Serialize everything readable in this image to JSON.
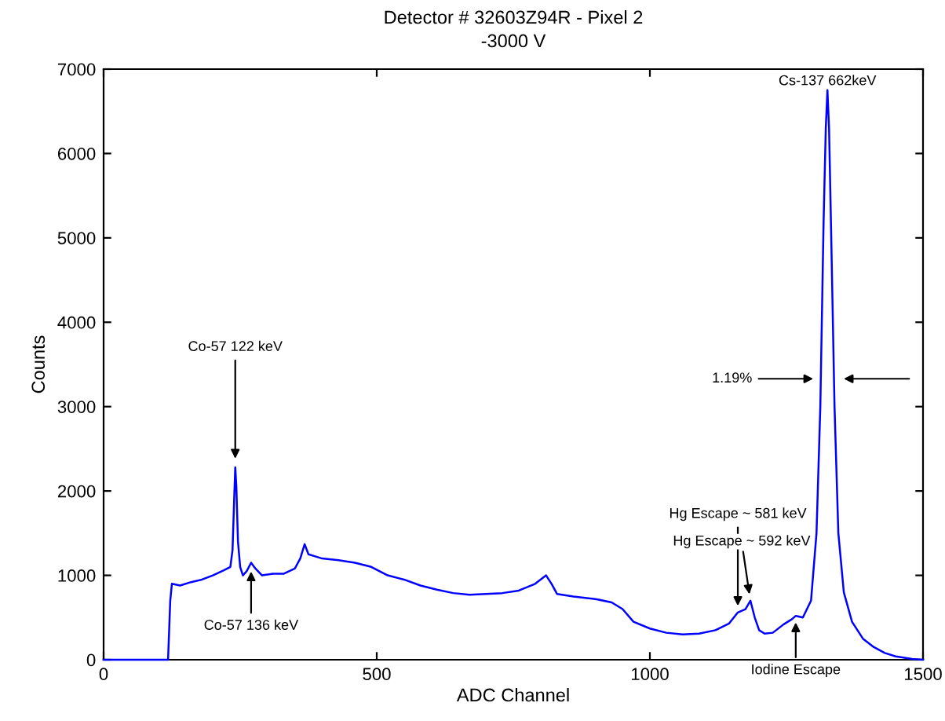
{
  "chart_data": {
    "type": "line",
    "title": "Detector # 32603Z94R - Pixel 2",
    "subtitle": "-3000 V",
    "xlabel": "ADC Channel",
    "ylabel": "Counts",
    "x": [
      0,
      50,
      100,
      118,
      122,
      125,
      140,
      160,
      180,
      200,
      220,
      232,
      236,
      239,
      241,
      243,
      246,
      250,
      255,
      262,
      270,
      278,
      290,
      310,
      330,
      350,
      360,
      368,
      375,
      385,
      400,
      430,
      460,
      490,
      520,
      550,
      580,
      610,
      640,
      670,
      700,
      730,
      760,
      790,
      810,
      820,
      830,
      860,
      900,
      930,
      950,
      970,
      1000,
      1030,
      1060,
      1090,
      1120,
      1145,
      1161,
      1175,
      1184,
      1192,
      1200,
      1210,
      1225,
      1245,
      1260,
      1267,
      1280,
      1295,
      1305,
      1312,
      1318,
      1322,
      1325,
      1328,
      1332,
      1338,
      1345,
      1355,
      1370,
      1390,
      1410,
      1430,
      1450,
      1480,
      1500
    ],
    "series": [
      {
        "color": "#0000ff",
        "values": [
          0,
          0,
          0,
          0,
          700,
          900,
          880,
          920,
          950,
          1000,
          1060,
          1100,
          1300,
          1900,
          2280,
          2050,
          1400,
          1100,
          1000,
          1050,
          1150,
          1080,
          1000,
          1020,
          1020,
          1080,
          1200,
          1370,
          1250,
          1230,
          1200,
          1180,
          1150,
          1100,
          1000,
          950,
          880,
          830,
          790,
          770,
          780,
          790,
          820,
          900,
          1000,
          900,
          780,
          750,
          720,
          680,
          600,
          450,
          370,
          320,
          300,
          310,
          350,
          430,
          560,
          600,
          700,
          500,
          350,
          310,
          320,
          420,
          480,
          520,
          500,
          700,
          1500,
          3000,
          5200,
          6300,
          6750,
          6300,
          5000,
          3000,
          1500,
          800,
          450,
          250,
          150,
          80,
          40,
          10,
          0
        ]
      }
    ],
    "xlim": [
      0,
      1500
    ],
    "xticks": [
      0,
      500,
      1000,
      1500
    ],
    "ylim": [
      0,
      7000
    ],
    "yticks": [
      0,
      1000,
      2000,
      3000,
      4000,
      5000,
      6000,
      7000
    ],
    "grid": false,
    "marker": "none",
    "line_style": "solid",
    "annotations": [
      {
        "text": "Co-57 122 keV",
        "x": 241,
        "y": 2280
      },
      {
        "text": "Co-57 136 keV",
        "x": 270,
        "y": 1150
      },
      {
        "text": "Hg Escape ~ 581 keV",
        "x": 1161,
        "y": 560
      },
      {
        "text": "Hg Escape ~ 592 keV",
        "x": 1184,
        "y": 700
      },
      {
        "text": "Iodine Escape",
        "x": 1267,
        "y": 520
      },
      {
        "text": "Cs-137 662keV",
        "x": 1325,
        "y": 6750
      },
      {
        "text": "1.19%",
        "x": 1299,
        "y": 3330
      }
    ]
  }
}
